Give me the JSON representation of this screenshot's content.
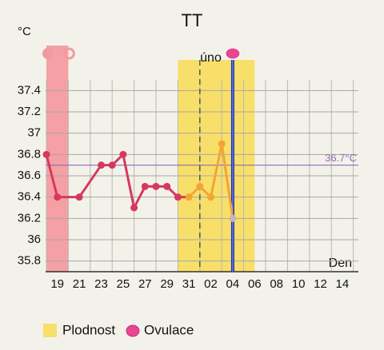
{
  "chart_data": {
    "type": "line",
    "title": "TT",
    "y_unit": "°C",
    "x_unit": "Den",
    "categories": [
      null,
      "19",
      null,
      "21",
      null,
      "23",
      null,
      "25",
      null,
      "27",
      null,
      "29",
      null,
      "31",
      null,
      "02",
      null,
      "04",
      null,
      "06",
      null,
      "08",
      null,
      "10",
      null,
      "12",
      null,
      "14",
      null
    ],
    "series": [
      {
        "name": "TT",
        "color": "#d6385f",
        "fertile_color": "#f2a535",
        "ovulation_point_color": "#c9b3c0",
        "values": [
          36.8,
          36.4,
          null,
          36.4,
          null,
          36.7,
          36.7,
          36.8,
          36.3,
          36.5,
          36.5,
          36.5,
          36.4,
          36.4,
          36.5,
          36.4,
          36.9,
          36.2,
          null,
          null,
          null,
          null,
          null,
          null,
          null,
          null,
          null,
          null,
          null
        ]
      }
    ],
    "ylim": [
      35.7,
      37.5
    ],
    "yticks": [
      35.8,
      36,
      36.2,
      36.4,
      36.6,
      36.8,
      37,
      37.2,
      37.4
    ],
    "reference_line": {
      "value": 36.7,
      "label": "36.7°C",
      "color": "#8e6bb5"
    },
    "menstruation": [
      0,
      2
    ],
    "menstruation_color": "#f4a0a4",
    "fertile": [
      12,
      19
    ],
    "fertile_color": "#f8df6a",
    "fertile_label": "Plodnost",
    "month_label": "úno",
    "month_index": 15,
    "coverline_day": 14,
    "ovulation_day": 17,
    "ovulation_color": "#1a2fb0",
    "ovulation_label": "Ovulace",
    "grid": true
  }
}
